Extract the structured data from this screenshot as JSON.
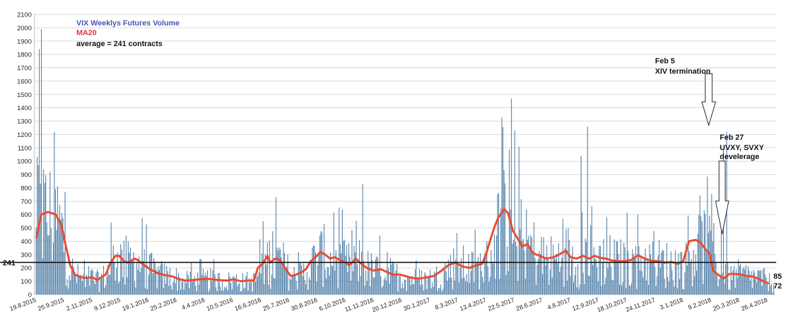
{
  "chart_data": {
    "type": "bar",
    "legend": {
      "volume_label": "VIX Weeklys Futures Volume",
      "ma_label": "MA20",
      "average_label": "average = 241 contracts",
      "placement": "top-left"
    },
    "ylim": [
      0,
      2100
    ],
    "y_ticks": [
      0,
      100,
      200,
      300,
      400,
      500,
      600,
      700,
      800,
      900,
      1000,
      1100,
      1200,
      1300,
      1400,
      1500,
      1600,
      1700,
      1800,
      1900,
      2000,
      2100
    ],
    "x_tick_labels": [
      "19.8.2015",
      "25.9.2015",
      "2.11.2015",
      "9.12.2015",
      "19.1.2016",
      "25.2.2016",
      "4.4.2016",
      "10.5.2016",
      "16.6.2016",
      "25.7.2016",
      "30.8.2016",
      "6.10.2016",
      "11.11.2016",
      "20.12.2016",
      "30.1.2017",
      "8.3.2017",
      "13.4.2017",
      "22.5.2017",
      "28.6.2017",
      "4.8.2017",
      "12.9.2017",
      "18.10.2017",
      "24.11.2017",
      "3.1.2018",
      "9.2.2018",
      "20.3.2018",
      "26.4.2018"
    ],
    "average_line": {
      "value": 241,
      "label": "241"
    },
    "end_labels": {
      "ma_last": "85",
      "volume_last": "72"
    },
    "ma_points": [
      [
        0,
        430
      ],
      [
        0.5,
        600
      ],
      [
        1.2,
        620
      ],
      [
        2,
        600
      ],
      [
        2.6,
        520
      ],
      [
        3,
        380
      ],
      [
        3.5,
        220
      ],
      [
        4,
        150
      ],
      [
        4.6,
        130
      ],
      [
        5.2,
        125
      ],
      [
        5.8,
        130
      ],
      [
        6.3,
        110
      ],
      [
        7.2,
        150
      ],
      [
        7.7,
        240
      ],
      [
        8.2,
        290
      ],
      [
        8.6,
        290
      ],
      [
        9.1,
        250
      ],
      [
        9.5,
        240
      ],
      [
        10.2,
        270
      ],
      [
        10.5,
        260
      ],
      [
        11,
        230
      ],
      [
        11.8,
        190
      ],
      [
        12.6,
        160
      ],
      [
        13.4,
        145
      ],
      [
        14.2,
        135
      ],
      [
        14.8,
        115
      ],
      [
        15.5,
        105
      ],
      [
        16.3,
        110
      ],
      [
        17,
        115
      ],
      [
        17.8,
        118
      ],
      [
        18.5,
        112
      ],
      [
        19.2,
        108
      ],
      [
        19.8,
        105
      ],
      [
        20.5,
        115
      ],
      [
        21.2,
        100
      ],
      [
        21.9,
        105
      ],
      [
        22.6,
        105
      ],
      [
        23,
        200
      ],
      [
        23.5,
        230
      ],
      [
        24,
        290
      ],
      [
        24.3,
        240
      ],
      [
        24.8,
        270
      ],
      [
        25.3,
        260
      ],
      [
        25.8,
        200
      ],
      [
        26.4,
        140
      ],
      [
        27,
        150
      ],
      [
        27.6,
        170
      ],
      [
        28,
        190
      ],
      [
        28.5,
        250
      ],
      [
        29,
        280
      ],
      [
        29.5,
        320
      ],
      [
        30,
        300
      ],
      [
        30.5,
        270
      ],
      [
        31,
        280
      ],
      [
        31.5,
        260
      ],
      [
        32.1,
        240
      ],
      [
        32.5,
        220
      ],
      [
        33.2,
        270
      ],
      [
        33.6,
        240
      ],
      [
        34.3,
        200
      ],
      [
        35,
        180
      ],
      [
        35.8,
        190
      ],
      [
        36.4,
        170
      ],
      [
        37,
        150
      ],
      [
        37.8,
        150
      ],
      [
        38.3,
        140
      ],
      [
        39,
        125
      ],
      [
        39.8,
        120
      ],
      [
        40.6,
        130
      ],
      [
        41.3,
        140
      ],
      [
        42.1,
        180
      ],
      [
        42.8,
        220
      ],
      [
        43.5,
        240
      ],
      [
        44.3,
        210
      ],
      [
        45,
        200
      ],
      [
        45.7,
        220
      ],
      [
        46.3,
        230
      ],
      [
        46.7,
        300
      ],
      [
        47.2,
        420
      ],
      [
        47.6,
        510
      ],
      [
        48,
        580
      ],
      [
        48.6,
        640
      ],
      [
        49,
        610
      ],
      [
        49.5,
        480
      ],
      [
        50,
        420
      ],
      [
        50.5,
        360
      ],
      [
        51,
        380
      ],
      [
        51.6,
        310
      ],
      [
        52.3,
        290
      ],
      [
        53,
        270
      ],
      [
        53.7,
        280
      ],
      [
        54.3,
        300
      ],
      [
        55,
        330
      ],
      [
        55.5,
        280
      ],
      [
        56.1,
        270
      ],
      [
        56.8,
        290
      ],
      [
        57.4,
        270
      ],
      [
        58,
        290
      ],
      [
        58.6,
        275
      ],
      [
        59.2,
        270
      ],
      [
        59.8,
        255
      ],
      [
        60.5,
        250
      ],
      [
        61.2,
        250
      ],
      [
        61.8,
        260
      ],
      [
        62.5,
        295
      ],
      [
        63.2,
        270
      ],
      [
        63.8,
        255
      ],
      [
        64.6,
        250
      ],
      [
        65.3,
        240
      ],
      [
        66,
        245
      ],
      [
        66.6,
        230
      ],
      [
        67.2,
        250
      ],
      [
        67.8,
        400
      ],
      [
        68.5,
        410
      ],
      [
        69,
        390
      ],
      [
        69.5,
        340
      ],
      [
        70,
        300
      ],
      [
        70.3,
        180
      ],
      [
        70.8,
        150
      ],
      [
        71.4,
        120
      ],
      [
        72,
        155
      ],
      [
        72.5,
        155
      ],
      [
        73.2,
        150
      ],
      [
        73.8,
        140
      ],
      [
        74.4,
        135
      ],
      [
        75,
        120
      ],
      [
        75.5,
        100
      ],
      [
        76,
        85
      ]
    ]
  },
  "annotations": [
    {
      "line1": "Feb 5",
      "line2": "XIV termination",
      "line3": ""
    },
    {
      "line1": "Feb 27",
      "line2": "UVXY, SVXY",
      "line3": "develerage"
    }
  ],
  "colors": {
    "bar": "#4a7ba6",
    "ma": "#ec4a2e",
    "volume_text": "#4a55b4",
    "ma_text": "#e8303d",
    "average_line": "#111111"
  }
}
